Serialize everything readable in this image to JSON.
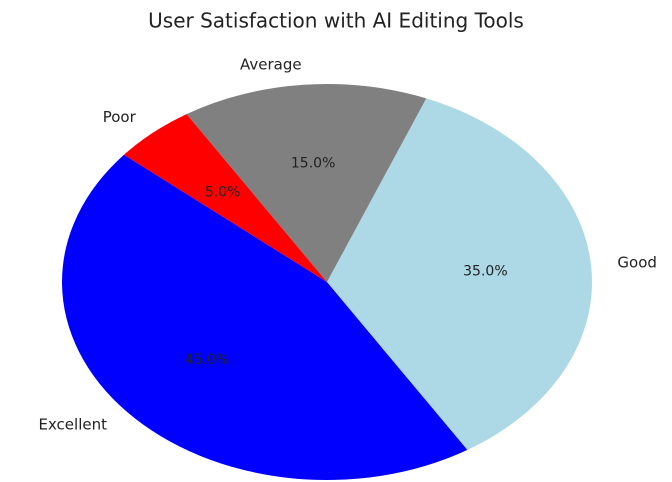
{
  "chart_data": {
    "type": "pie",
    "title": "User Satisfaction with AI Editing Tools",
    "categories": [
      "Excellent",
      "Good",
      "Average",
      "Poor"
    ],
    "values": [
      45,
      35,
      15,
      5
    ],
    "value_labels": [
      "45.0%",
      "35.0%",
      "15.0%",
      "5.0%"
    ],
    "colors": [
      "#0000ff",
      "#add8e6",
      "#808080",
      "#ff0000"
    ]
  }
}
